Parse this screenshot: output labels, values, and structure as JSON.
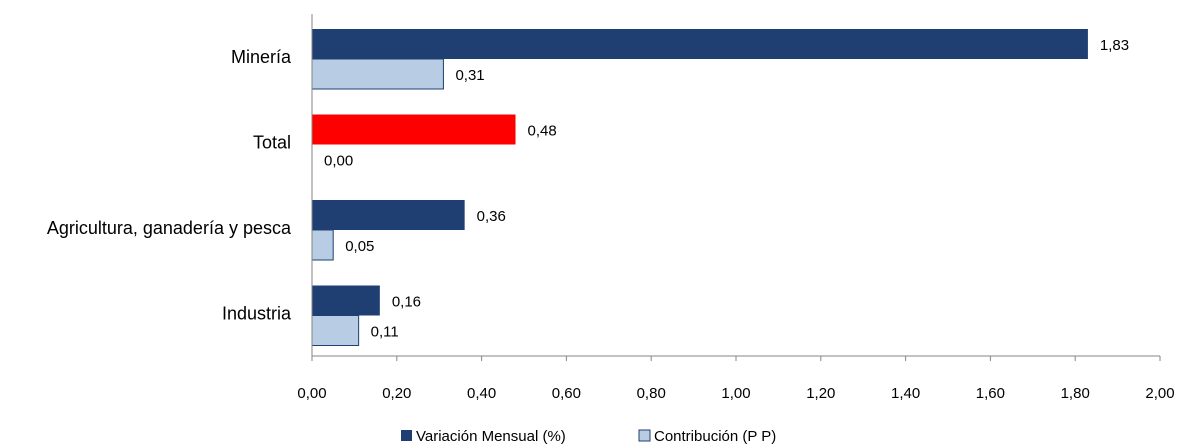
{
  "chart_data": {
    "type": "bar",
    "orientation": "horizontal",
    "categories": [
      "Minería",
      "Total",
      "Agricultura, ganadería y pesca",
      "Industria"
    ],
    "series": [
      {
        "name": "Variación Mensual (%)",
        "values": [
          1.83,
          0.48,
          0.36,
          0.16
        ],
        "value_labels": [
          "1,83",
          "0,48",
          "0,36",
          "0,16"
        ],
        "color": "#1f3f73",
        "highlight": {
          "category": "Total",
          "color": "#ff0000"
        }
      },
      {
        "name": "Contribución (P P)",
        "values": [
          0.31,
          0.0,
          0.05,
          0.11
        ],
        "value_labels": [
          "0,31",
          "0,00",
          "0,05",
          "0,11"
        ],
        "color": "#b8cce4",
        "border_color": "#1f3f73"
      }
    ],
    "x_ticks": [
      "0,00",
      "0,20",
      "0,40",
      "0,60",
      "0,80",
      "1,00",
      "1,20",
      "1,40",
      "1,60",
      "1,80",
      "2,00"
    ],
    "xlim": [
      0,
      2
    ],
    "title": "",
    "xlabel": "",
    "ylabel": "",
    "grid": false,
    "legend_position": "bottom"
  }
}
